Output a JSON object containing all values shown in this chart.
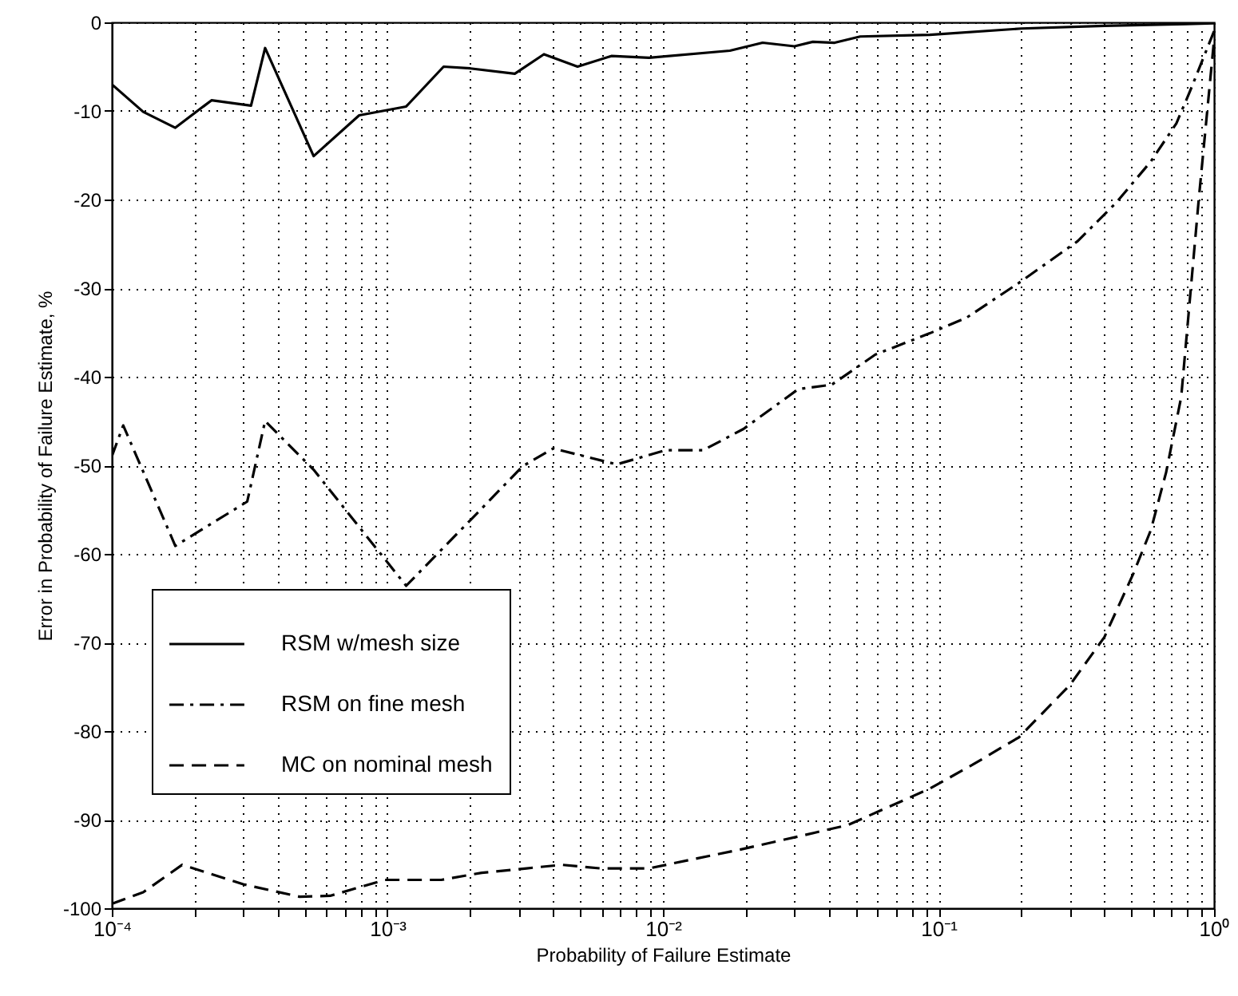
{
  "chart_data": {
    "type": "line",
    "xlabel": "Probability of Failure Estimate",
    "ylabel": "Error in Probability of Failure Estimate, %",
    "log": "x",
    "grid": true,
    "legend": "left",
    "xlim": [
      0.0001,
      1
    ],
    "ylim": [
      -100,
      0
    ],
    "xticks": [
      {
        "value": 0.0001,
        "label": "10⁻⁴"
      },
      {
        "value": 0.0002,
        "label": null
      },
      {
        "value": 0.0003,
        "label": null
      },
      {
        "value": 0.0004,
        "label": null
      },
      {
        "value": 0.0005,
        "label": null
      },
      {
        "value": 0.0006,
        "label": null
      },
      {
        "value": 0.0007,
        "label": null
      },
      {
        "value": 0.0008,
        "label": null
      },
      {
        "value": 0.0009,
        "label": null
      },
      {
        "value": 0.001,
        "label": "10⁻³"
      },
      {
        "value": 0.002,
        "label": null
      },
      {
        "value": 0.003,
        "label": null
      },
      {
        "value": 0.004,
        "label": null
      },
      {
        "value": 0.005,
        "label": null
      },
      {
        "value": 0.006,
        "label": null
      },
      {
        "value": 0.007,
        "label": null
      },
      {
        "value": 0.008,
        "label": null
      },
      {
        "value": 0.009,
        "label": null
      },
      {
        "value": 0.01,
        "label": "10⁻²"
      },
      {
        "value": 0.02,
        "label": null
      },
      {
        "value": 0.03,
        "label": null
      },
      {
        "value": 0.04,
        "label": null
      },
      {
        "value": 0.05,
        "label": null
      },
      {
        "value": 0.06,
        "label": null
      },
      {
        "value": 0.07,
        "label": null
      },
      {
        "value": 0.08,
        "label": null
      },
      {
        "value": 0.09,
        "label": null
      },
      {
        "value": 0.1,
        "label": "10⁻¹"
      },
      {
        "value": 0.2,
        "label": null
      },
      {
        "value": 0.3,
        "label": null
      },
      {
        "value": 0.4,
        "label": null
      },
      {
        "value": 0.5,
        "label": null
      },
      {
        "value": 0.6,
        "label": null
      },
      {
        "value": 0.7,
        "label": null
      },
      {
        "value": 0.8,
        "label": null
      },
      {
        "value": 0.9,
        "label": null
      },
      {
        "value": 1,
        "label": "10⁰"
      }
    ],
    "yticks": [
      -100,
      -90,
      -80,
      -70,
      -60,
      -50,
      -40,
      -30,
      -20,
      -10,
      0
    ],
    "series": [
      {
        "name": "RSM w/mesh size",
        "color": "#000000",
        "line_style": "solid",
        "x": [
          0.0001,
          0.00013,
          0.00017,
          0.00023,
          0.00032,
          0.00036,
          0.00054,
          0.00079,
          0.00117,
          0.0016,
          0.002,
          0.0029,
          0.0037,
          0.0049,
          0.0065,
          0.0089,
          0.0175,
          0.023,
          0.03,
          0.035,
          0.042,
          0.052,
          0.093,
          0.2,
          0.4,
          0.79,
          1
        ],
        "values": [
          -7,
          -10.1,
          -11.9,
          -8.8,
          -9.4,
          -2.9,
          -15.1,
          -10.5,
          -9.5,
          -5,
          -5.2,
          -5.8,
          -3.6,
          -5,
          -3.8,
          -4,
          -3.2,
          -2.3,
          -2.7,
          -2.2,
          -2.3,
          -1.6,
          -1.4,
          -0.7,
          -0.4,
          -0.2,
          -0.1
        ]
      },
      {
        "name": "RSM on fine mesh",
        "color": "#000000",
        "line_style": "dashdot",
        "x": [
          0.0001,
          0.00011,
          0.00017,
          0.00031,
          0.00036,
          0.00054,
          0.00084,
          0.00117,
          0.002,
          0.0031,
          0.004,
          0.0068,
          0.0102,
          0.014,
          0.0196,
          0.031,
          0.041,
          0.059,
          0.093,
          0.127,
          0.196,
          0.32,
          0.44,
          0.59,
          0.73,
          0.82,
          1
        ],
        "values": [
          -49,
          -45.5,
          -59.1,
          -54.1,
          -45,
          -50.5,
          -58,
          -63.6,
          -56.2,
          -50.1,
          -48.1,
          -49.9,
          -48.3,
          -48.3,
          -45.9,
          -41.4,
          -40.9,
          -37.5,
          -35.1,
          -33.3,
          -29.4,
          -24.7,
          -20.4,
          -15.7,
          -11.4,
          -7.7,
          -1
        ]
      },
      {
        "name": "MC on nominal mesh",
        "color": "#000000",
        "line_style": "dashed",
        "x": [
          0.0001,
          0.00013,
          0.00018,
          0.0003,
          0.00048,
          0.00062,
          0.00076,
          0.00098,
          0.00157,
          0.0022,
          0.0032,
          0.0043,
          0.0059,
          0.0089,
          0.0196,
          0.031,
          0.047,
          0.093,
          0.133,
          0.196,
          0.3,
          0.4,
          0.51,
          0.59,
          0.67,
          0.76,
          0.88,
          1
        ],
        "values": [
          -99.5,
          -98.2,
          -95.1,
          -97.3,
          -98.7,
          -98.6,
          -97.8,
          -96.8,
          -96.8,
          -96,
          -95.5,
          -95.1,
          -95.5,
          -95.5,
          -93.3,
          -91.9,
          -90.6,
          -86.5,
          -83.8,
          -80.7,
          -74.8,
          -69.4,
          -62.2,
          -57.3,
          -50.8,
          -42.3,
          -20,
          -2
        ]
      }
    ]
  }
}
